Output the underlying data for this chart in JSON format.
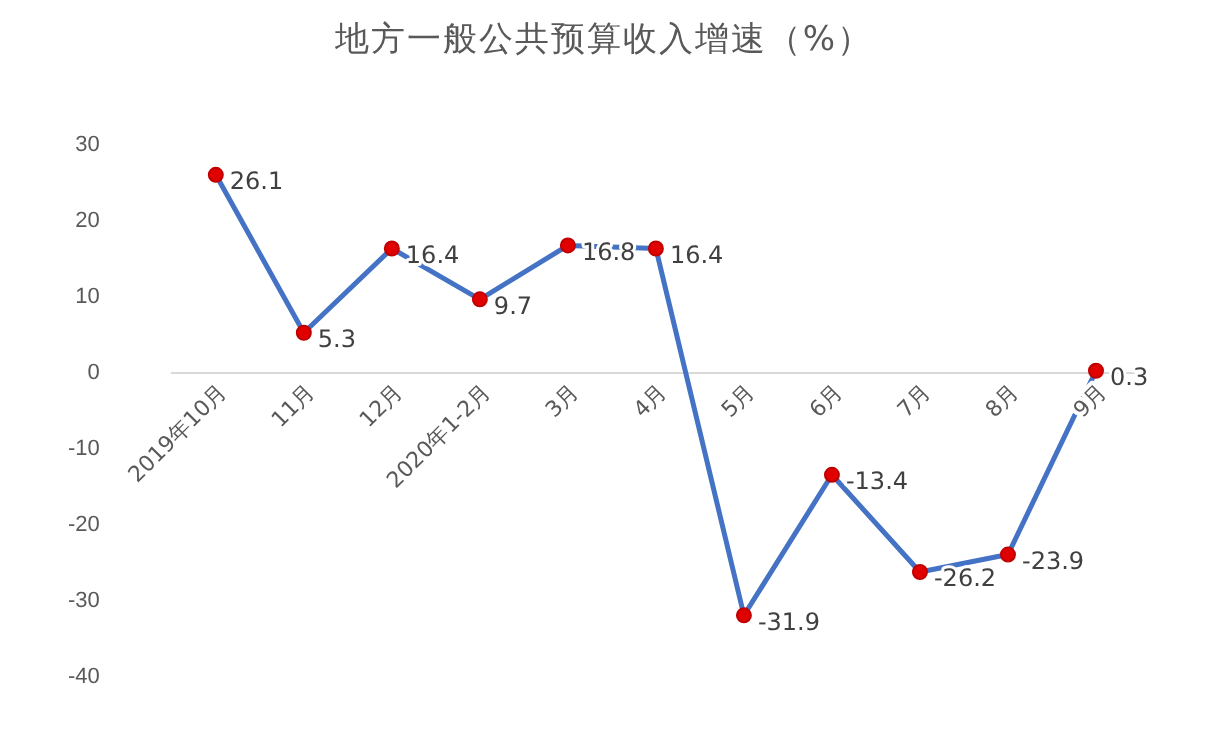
{
  "chart_data": {
    "type": "line",
    "title": "地方一般公共预算收入增速（%）",
    "categories": [
      "2019年10月",
      "11月",
      "12月",
      "2020年1-2月",
      "3月",
      "4月",
      "5月",
      "6月",
      "7月",
      "8月",
      "9月"
    ],
    "series": [
      {
        "color": "#4472c4",
        "values": [
          26.1,
          5.3,
          16.4,
          9.7,
          16.8,
          16.4,
          -31.9,
          -13.4,
          -26.2,
          -23.9,
          0.3
        ]
      }
    ],
    "ylim": [
      -40,
      30
    ],
    "yticks": [
      -40,
      -30,
      -20,
      -10,
      0,
      10,
      20,
      30
    ],
    "grid": false,
    "legend": false,
    "marker": "circle",
    "line_style": "solid",
    "data_labels": true
  }
}
